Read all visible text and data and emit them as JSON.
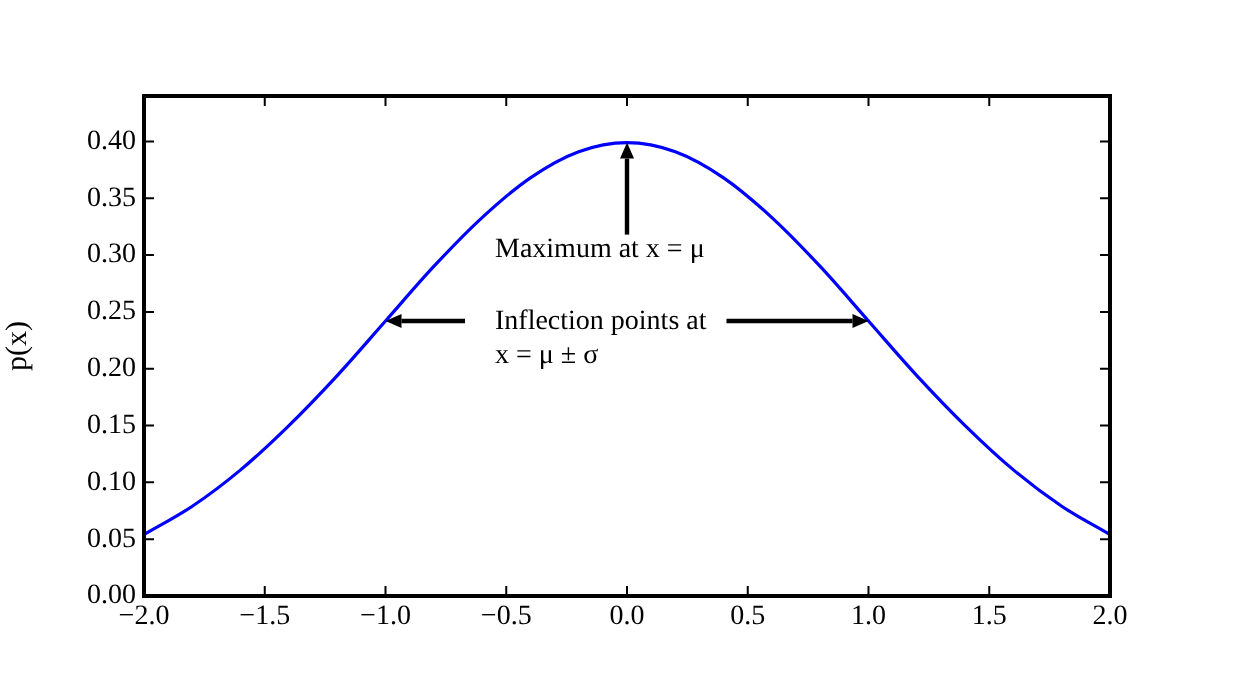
{
  "chart_data": {
    "type": "line",
    "ylabel": "p(x)",
    "x": [
      -2.0,
      -1.8,
      -1.6,
      -1.4,
      -1.2,
      -1.0,
      -0.8,
      -0.6,
      -0.4,
      -0.2,
      0.0,
      0.2,
      0.4,
      0.6,
      0.8,
      1.0,
      1.2,
      1.4,
      1.6,
      1.8,
      2.0
    ],
    "series": [
      {
        "color": "#0000ff",
        "values": [
          0.054,
          0.079,
          0.111,
          0.15,
          0.194,
          0.242,
          0.29,
          0.333,
          0.368,
          0.391,
          0.399,
          0.391,
          0.368,
          0.333,
          0.29,
          0.242,
          0.194,
          0.15,
          0.111,
          0.079,
          0.054
        ]
      }
    ],
    "xlim": [
      -2.0,
      2.0
    ],
    "xticks": [
      {
        "value": -2.0,
        "label": "−2.0"
      },
      {
        "value": -1.5,
        "label": "−1.5"
      },
      {
        "value": -1.0,
        "label": "−1.0"
      },
      {
        "value": -0.5,
        "label": "−0.5"
      },
      {
        "value": 0.0,
        "label": "0.0"
      },
      {
        "value": 0.5,
        "label": "0.5"
      },
      {
        "value": 1.0,
        "label": "1.0"
      },
      {
        "value": 1.5,
        "label": "1.5"
      },
      {
        "value": 2.0,
        "label": "2.0"
      }
    ],
    "ylim": [
      0,
      0.44
    ],
    "yticks": [
      {
        "value": 0,
        "label": "0.00"
      },
      {
        "value": 0.05,
        "label": "0.05"
      },
      {
        "value": 0.1,
        "label": "0.10"
      },
      {
        "value": 0.15,
        "label": "0.15"
      },
      {
        "value": 0.2,
        "label": "0.20"
      },
      {
        "value": 0.25,
        "label": "0.25"
      },
      {
        "value": 0.3,
        "label": "0.30"
      },
      {
        "value": 0.35,
        "label": "0.35"
      },
      {
        "value": 0.4,
        "label": "0.40"
      }
    ],
    "annotations": [
      {
        "text": "Maximum at x = μ",
        "x": 0.0,
        "y": 0.399
      },
      {
        "text": "Inflection points at\nx = μ ± σ",
        "x": -1.0,
        "y": 0.242
      }
    ],
    "grid": false,
    "legend": false,
    "marker": "none",
    "line_style": "solid"
  }
}
